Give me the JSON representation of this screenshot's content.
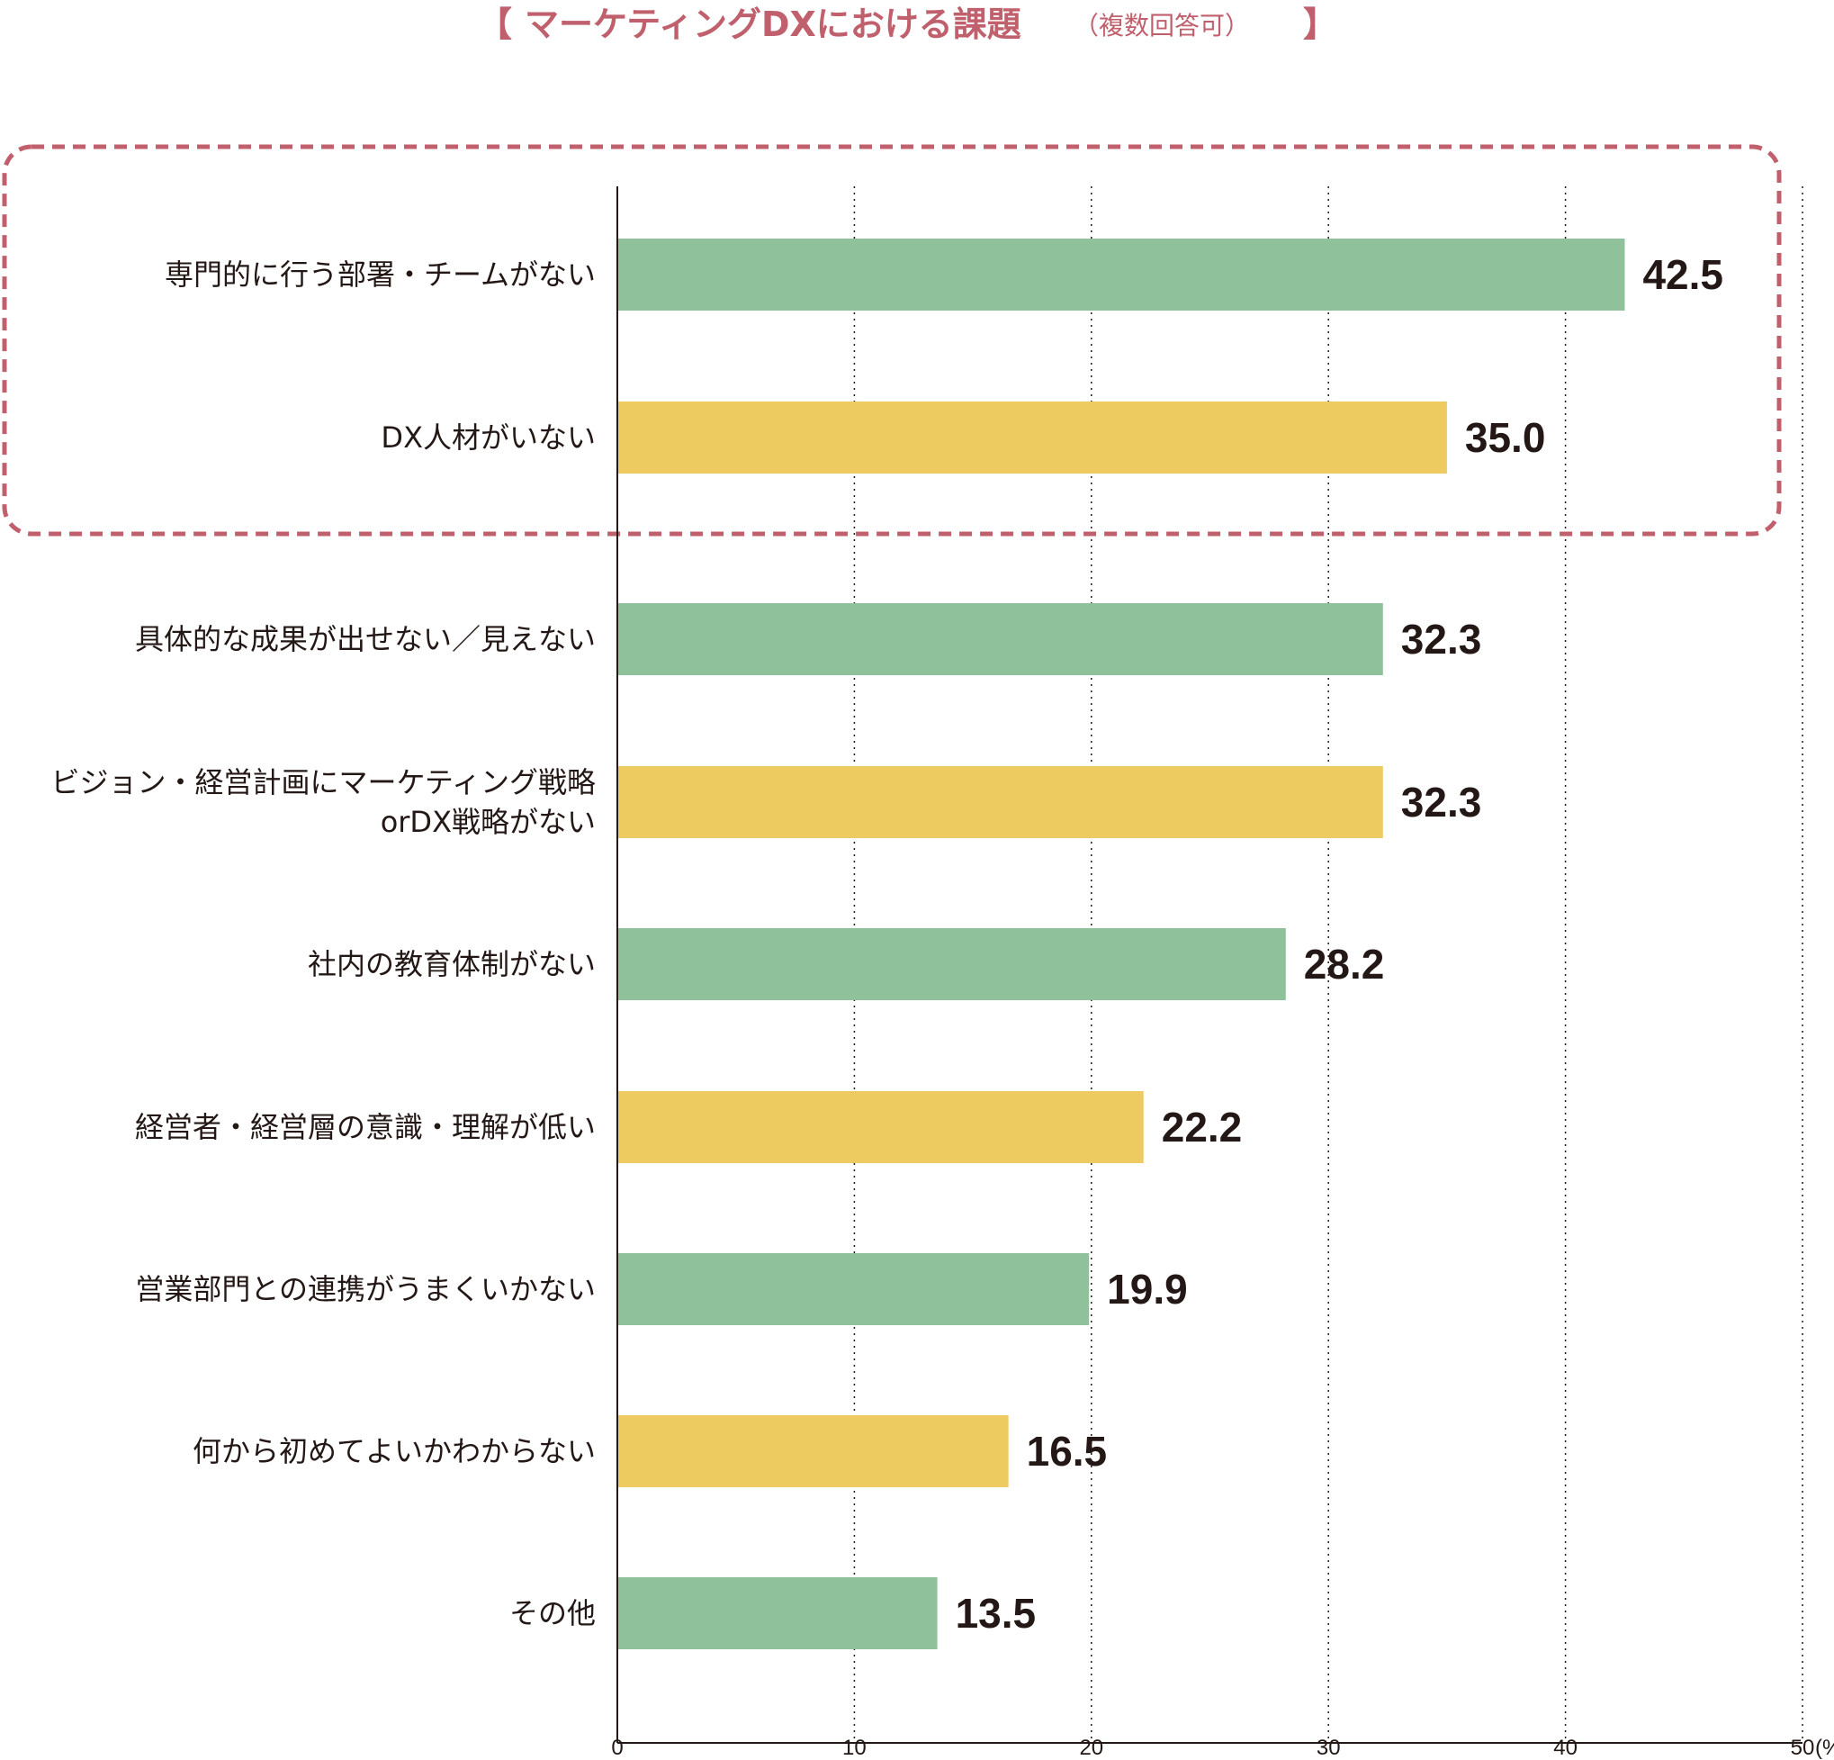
{
  "chart_data": {
    "type": "bar",
    "orientation": "horizontal",
    "title": "マーケティングDXにおける課題",
    "title_note": "（複数回答可）",
    "title_brackets": [
      "【",
      "】"
    ],
    "categories": [
      [
        "専門的に行う部署・チームがない"
      ],
      [
        "DX人材がいない"
      ],
      [
        "具体的な成果が出せない／見えない"
      ],
      [
        "ビジョン・経営計画にマーケティング戦略",
        "orDX戦略がない"
      ],
      [
        "社内の教育体制がない"
      ],
      [
        "経営者・経営層の意識・理解が低い"
      ],
      [
        "営業部門との連携がうまくいかない"
      ],
      [
        "何から初めてよいかわからない"
      ],
      [
        "その他"
      ]
    ],
    "values": [
      42.5,
      35.0,
      32.3,
      32.3,
      28.2,
      22.2,
      19.9,
      16.5,
      13.5
    ],
    "value_labels": [
      "42.5",
      "35.0",
      "32.3",
      "32.3",
      "28.2",
      "22.2",
      "19.9",
      "16.5",
      "13.5"
    ],
    "bar_colors": [
      "#8fc19a",
      "#edcb60",
      "#8fc19a",
      "#edcb60",
      "#8fc19a",
      "#edcb60",
      "#8fc19a",
      "#edcb60",
      "#8fc19a"
    ],
    "xlim": [
      0,
      50
    ],
    "xticks": [
      0,
      10,
      20,
      30,
      40,
      50
    ],
    "xtick_labels": [
      "0",
      "10",
      "20",
      "30",
      "40",
      "50"
    ],
    "x_unit": "(%)",
    "grid": "vertical-dotted",
    "highlight": {
      "categories": [
        0,
        1
      ],
      "style": "dashed-rounded-box",
      "color": "#c0606c"
    },
    "title_color": "#c0606c",
    "text_color": "#231815",
    "axis_color": "#231815"
  }
}
